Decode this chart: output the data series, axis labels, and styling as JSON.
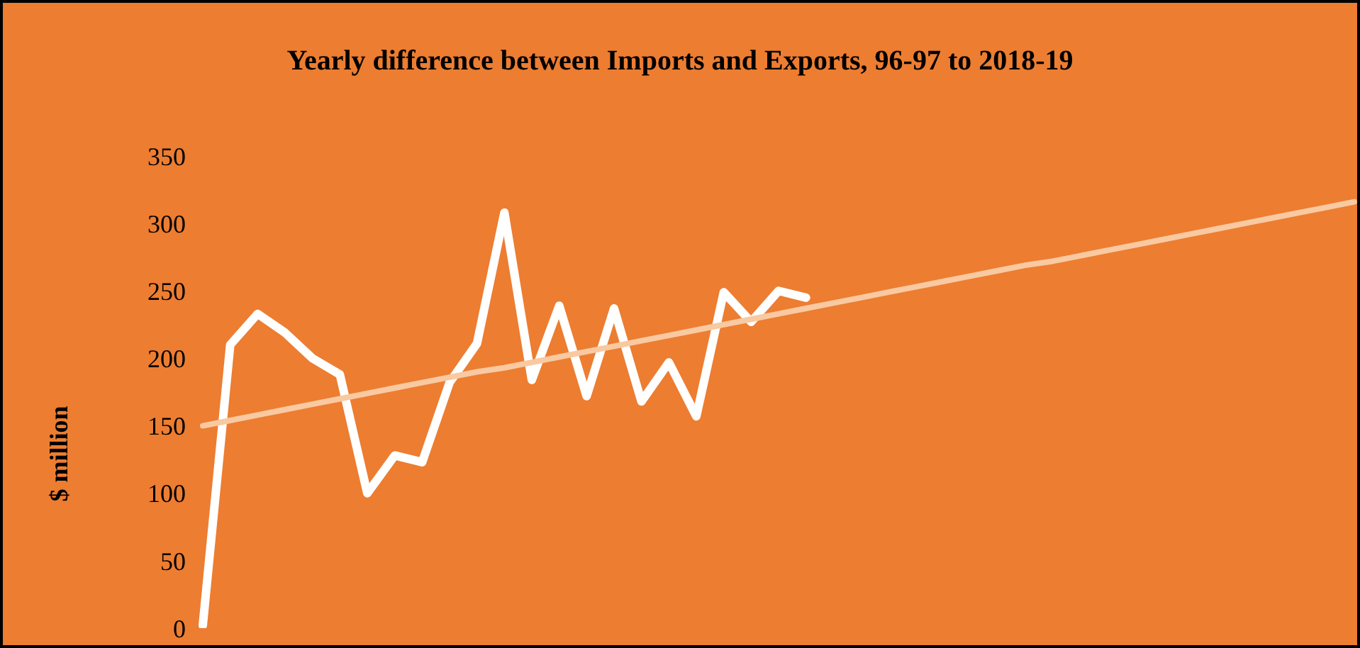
{
  "chart_data": {
    "type": "line",
    "title": "Yearly difference between Imports and Exports, 96-97 to 2018-19",
    "ylabel": "$ million",
    "categories": [
      null,
      null,
      null,
      null,
      null,
      null,
      null,
      null,
      null,
      null,
      null,
      null,
      null,
      null,
      null,
      null,
      null,
      null,
      null,
      null,
      null,
      null,
      null,
      null,
      null,
      null,
      null,
      null,
      null,
      null,
      null,
      null,
      null,
      null,
      null,
      null,
      null,
      null,
      null,
      null,
      null,
      null,
      null
    ],
    "series": [
      {
        "color": "#ffffff",
        "values": [
          2,
          210,
          233,
          219,
          200,
          188,
          100,
          128,
          123,
          182,
          211,
          308,
          184,
          239,
          172,
          237,
          168,
          197,
          157,
          249,
          227,
          250,
          245,
          null,
          null,
          null,
          null,
          null,
          null,
          null,
          null,
          null,
          null,
          null,
          null,
          null,
          null,
          null,
          null,
          null,
          null,
          null,
          null
        ]
      },
      {
        "color": "#f9c9a1",
        "values": [
          150,
          154,
          158,
          162,
          166,
          170,
          174,
          178,
          182,
          186,
          190,
          193,
          197,
          201,
          205,
          209,
          213,
          217,
          221,
          225,
          229,
          233,
          237,
          241,
          245,
          249,
          253,
          257,
          261,
          265,
          269,
          272,
          276,
          280,
          284,
          288,
          292,
          296,
          300,
          304,
          308,
          312,
          316
        ]
      }
    ],
    "ylim": [
      0,
      350
    ],
    "yticks": [
      0,
      50,
      100,
      150,
      200,
      250,
      300,
      350
    ],
    "tick_labels": "y"
  }
}
